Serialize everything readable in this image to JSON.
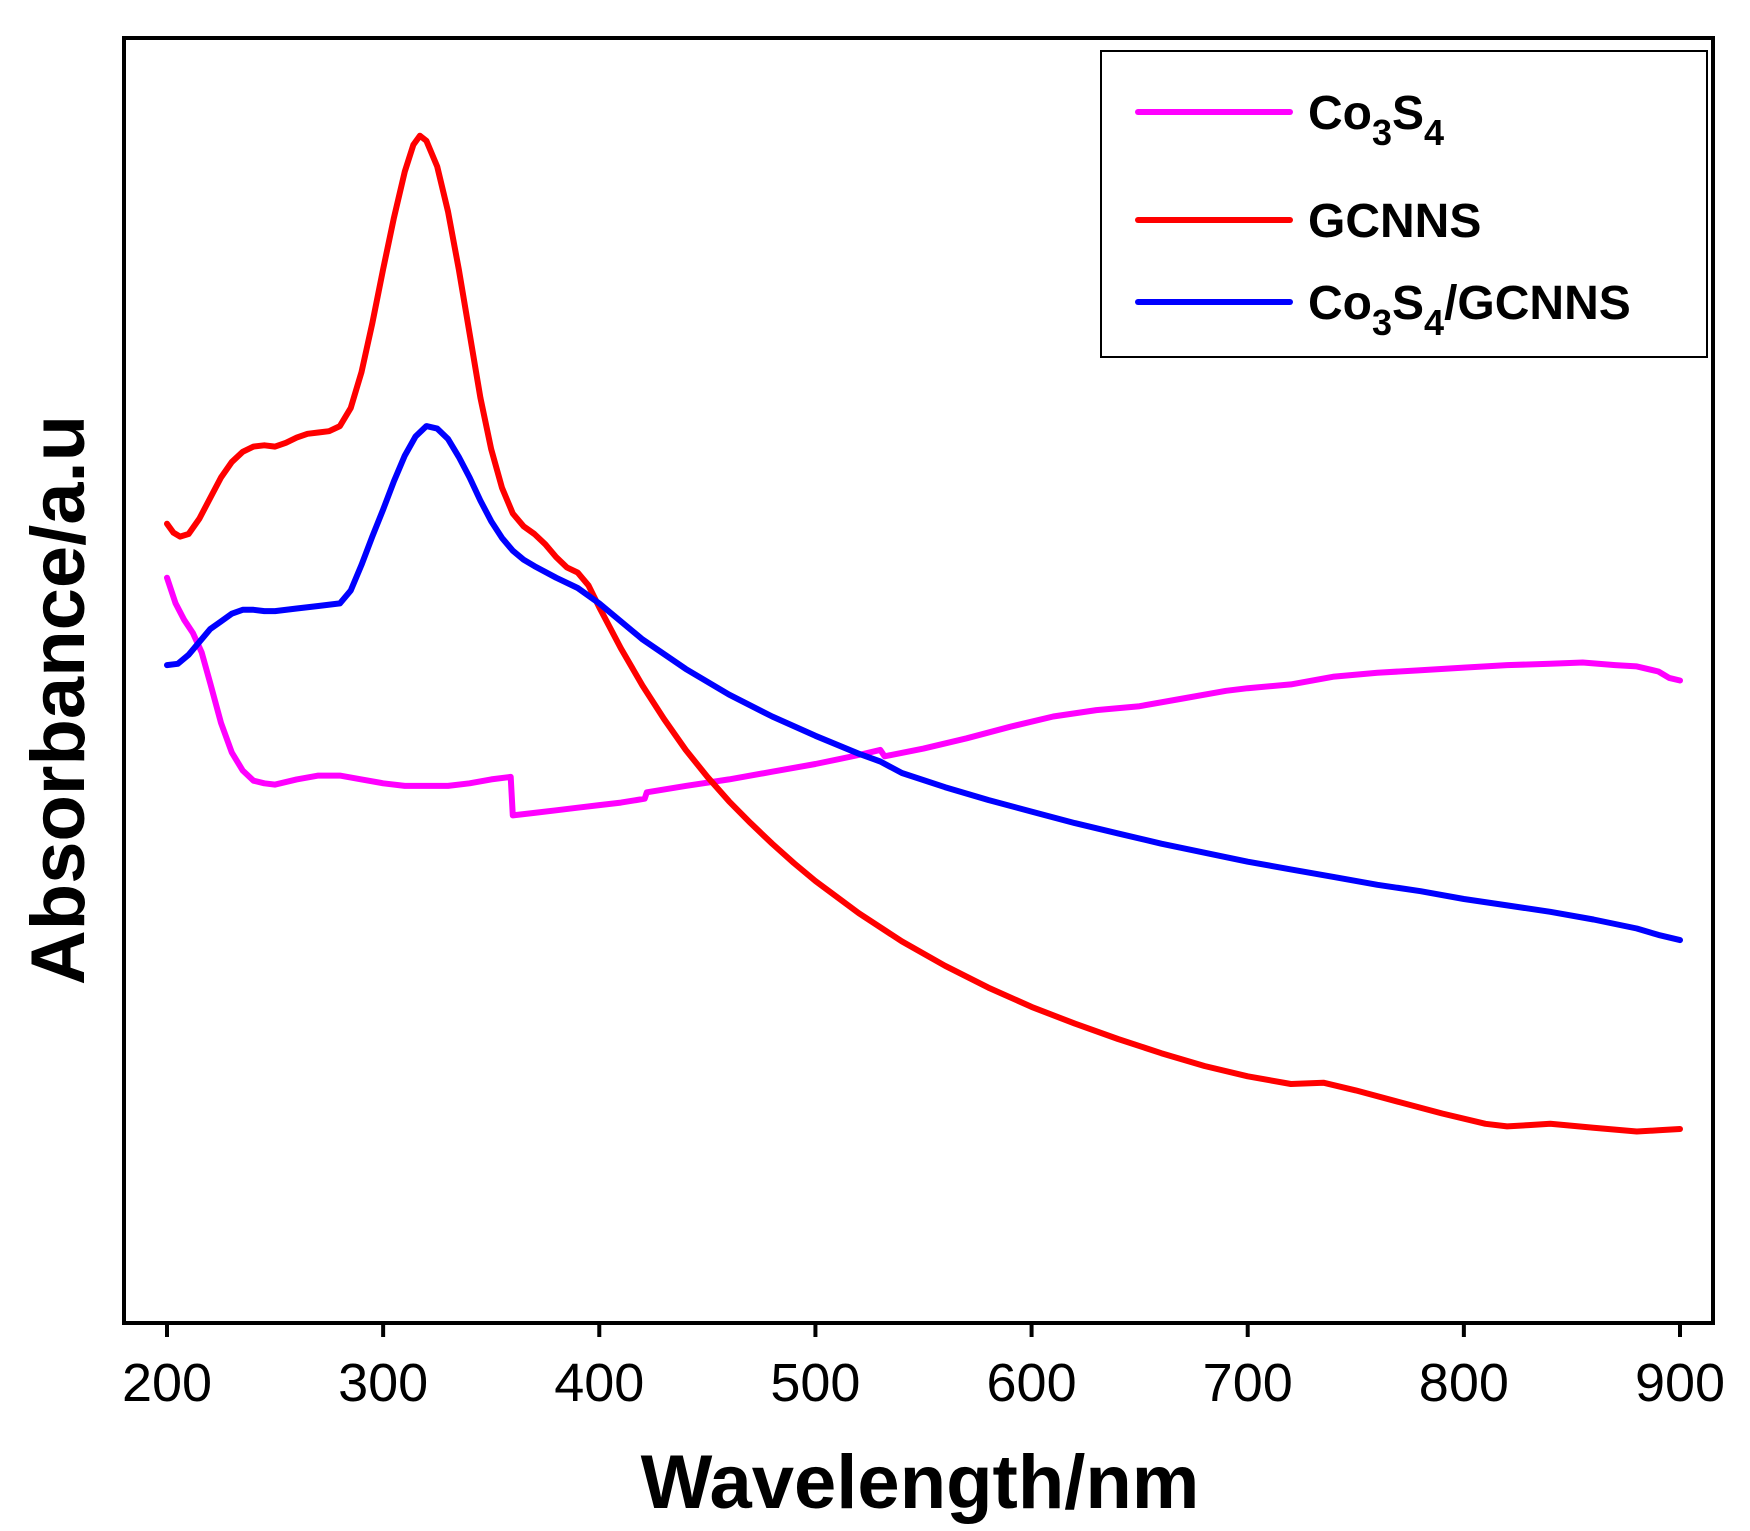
{
  "chart_data": {
    "type": "line",
    "title": "",
    "xlabel": "Wavelength/nm",
    "ylabel": "Absorbance/a.u",
    "xlim": [
      180,
      910
    ],
    "ylim": [
      0,
      1.0
    ],
    "x_ticks": [
      200,
      300,
      400,
      500,
      600,
      700,
      800,
      900
    ],
    "x_tick_labels": [
      "200",
      "300",
      "400",
      "500",
      "600",
      "700",
      "800",
      "900"
    ],
    "y_ticks_shown": false,
    "legend_position": "top-right",
    "series": [
      {
        "name": "Co3S4",
        "label_parts": [
          "Co",
          "3",
          "S",
          "4"
        ],
        "color": "#ff00ff",
        "points": [
          [
            200,
            0.58
          ],
          [
            204,
            0.56
          ],
          [
            208,
            0.547
          ],
          [
            212,
            0.537
          ],
          [
            216,
            0.522
          ],
          [
            220,
            0.498
          ],
          [
            225,
            0.467
          ],
          [
            230,
            0.444
          ],
          [
            235,
            0.43
          ],
          [
            240,
            0.422
          ],
          [
            245,
            0.42
          ],
          [
            250,
            0.419
          ],
          [
            260,
            0.423
          ],
          [
            270,
            0.426
          ],
          [
            280,
            0.426
          ],
          [
            290,
            0.423
          ],
          [
            300,
            0.42
          ],
          [
            310,
            0.418
          ],
          [
            320,
            0.418
          ],
          [
            330,
            0.418
          ],
          [
            340,
            0.42
          ],
          [
            350,
            0.423
          ],
          [
            359,
            0.425
          ],
          [
            360,
            0.395
          ],
          [
            370,
            0.397
          ],
          [
            380,
            0.399
          ],
          [
            390,
            0.401
          ],
          [
            400,
            0.403
          ],
          [
            410,
            0.405
          ],
          [
            421,
            0.408
          ],
          [
            422,
            0.413
          ],
          [
            440,
            0.418
          ],
          [
            460,
            0.423
          ],
          [
            480,
            0.429
          ],
          [
            500,
            0.435
          ],
          [
            520,
            0.442
          ],
          [
            530,
            0.446
          ],
          [
            532,
            0.441
          ],
          [
            550,
            0.447
          ],
          [
            570,
            0.455
          ],
          [
            590,
            0.464
          ],
          [
            610,
            0.472
          ],
          [
            630,
            0.477
          ],
          [
            650,
            0.48
          ],
          [
            670,
            0.486
          ],
          [
            690,
            0.492
          ],
          [
            700,
            0.494
          ],
          [
            720,
            0.497
          ],
          [
            740,
            0.503
          ],
          [
            760,
            0.506
          ],
          [
            780,
            0.508
          ],
          [
            800,
            0.51
          ],
          [
            820,
            0.512
          ],
          [
            840,
            0.513
          ],
          [
            855,
            0.514
          ],
          [
            870,
            0.512
          ],
          [
            880,
            0.511
          ],
          [
            890,
            0.507
          ],
          [
            895,
            0.502
          ],
          [
            900,
            0.5
          ]
        ]
      },
      {
        "name": "GCNNS",
        "label_parts": [
          "GCNNS"
        ],
        "color": "#ff0000",
        "points": [
          [
            200,
            0.622
          ],
          [
            203,
            0.615
          ],
          [
            206,
            0.612
          ],
          [
            210,
            0.614
          ],
          [
            215,
            0.626
          ],
          [
            220,
            0.642
          ],
          [
            225,
            0.658
          ],
          [
            230,
            0.67
          ],
          [
            235,
            0.678
          ],
          [
            240,
            0.682
          ],
          [
            245,
            0.683
          ],
          [
            250,
            0.682
          ],
          [
            255,
            0.685
          ],
          [
            260,
            0.689
          ],
          [
            265,
            0.692
          ],
          [
            270,
            0.693
          ],
          [
            275,
            0.694
          ],
          [
            280,
            0.698
          ],
          [
            285,
            0.712
          ],
          [
            290,
            0.74
          ],
          [
            295,
            0.778
          ],
          [
            300,
            0.82
          ],
          [
            305,
            0.86
          ],
          [
            310,
            0.896
          ],
          [
            314,
            0.917
          ],
          [
            317,
            0.924
          ],
          [
            320,
            0.92
          ],
          [
            325,
            0.9
          ],
          [
            330,
            0.865
          ],
          [
            335,
            0.82
          ],
          [
            340,
            0.77
          ],
          [
            345,
            0.72
          ],
          [
            350,
            0.68
          ],
          [
            355,
            0.65
          ],
          [
            360,
            0.63
          ],
          [
            365,
            0.62
          ],
          [
            370,
            0.614
          ],
          [
            375,
            0.606
          ],
          [
            380,
            0.596
          ],
          [
            385,
            0.588
          ],
          [
            390,
            0.584
          ],
          [
            395,
            0.574
          ],
          [
            400,
            0.557
          ],
          [
            410,
            0.525
          ],
          [
            420,
            0.496
          ],
          [
            430,
            0.47
          ],
          [
            440,
            0.446
          ],
          [
            450,
            0.425
          ],
          [
            460,
            0.406
          ],
          [
            470,
            0.389
          ],
          [
            480,
            0.373
          ],
          [
            490,
            0.358
          ],
          [
            500,
            0.344
          ],
          [
            520,
            0.319
          ],
          [
            540,
            0.297
          ],
          [
            560,
            0.278
          ],
          [
            580,
            0.261
          ],
          [
            600,
            0.246
          ],
          [
            620,
            0.233
          ],
          [
            640,
            0.221
          ],
          [
            660,
            0.21
          ],
          [
            680,
            0.2
          ],
          [
            700,
            0.192
          ],
          [
            720,
            0.186
          ],
          [
            735,
            0.187
          ],
          [
            750,
            0.181
          ],
          [
            770,
            0.172
          ],
          [
            790,
            0.163
          ],
          [
            810,
            0.155
          ],
          [
            820,
            0.153
          ],
          [
            830,
            0.154
          ],
          [
            840,
            0.155
          ],
          [
            860,
            0.152
          ],
          [
            880,
            0.149
          ],
          [
            890,
            0.15
          ],
          [
            900,
            0.151
          ]
        ]
      },
      {
        "name": "Co3S4/GCNNS",
        "label_parts": [
          "Co",
          "3",
          "S",
          "4",
          "/GCNNS"
        ],
        "color": "#0000ff",
        "points": [
          [
            200,
            0.512
          ],
          [
            205,
            0.513
          ],
          [
            210,
            0.52
          ],
          [
            215,
            0.53
          ],
          [
            220,
            0.54
          ],
          [
            225,
            0.546
          ],
          [
            230,
            0.552
          ],
          [
            235,
            0.555
          ],
          [
            240,
            0.555
          ],
          [
            245,
            0.554
          ],
          [
            250,
            0.554
          ],
          [
            260,
            0.556
          ],
          [
            270,
            0.558
          ],
          [
            280,
            0.56
          ],
          [
            285,
            0.57
          ],
          [
            290,
            0.59
          ],
          [
            295,
            0.612
          ],
          [
            300,
            0.633
          ],
          [
            305,
            0.655
          ],
          [
            310,
            0.675
          ],
          [
            315,
            0.69
          ],
          [
            320,
            0.698
          ],
          [
            325,
            0.696
          ],
          [
            330,
            0.688
          ],
          [
            335,
            0.674
          ],
          [
            340,
            0.658
          ],
          [
            345,
            0.64
          ],
          [
            350,
            0.624
          ],
          [
            355,
            0.611
          ],
          [
            360,
            0.601
          ],
          [
            365,
            0.594
          ],
          [
            370,
            0.589
          ],
          [
            380,
            0.58
          ],
          [
            390,
            0.572
          ],
          [
            400,
            0.56
          ],
          [
            420,
            0.532
          ],
          [
            440,
            0.509
          ],
          [
            460,
            0.489
          ],
          [
            480,
            0.472
          ],
          [
            500,
            0.457
          ],
          [
            520,
            0.443
          ],
          [
            530,
            0.437
          ],
          [
            540,
            0.428
          ],
          [
            560,
            0.417
          ],
          [
            580,
            0.407
          ],
          [
            600,
            0.398
          ],
          [
            620,
            0.389
          ],
          [
            640,
            0.381
          ],
          [
            660,
            0.373
          ],
          [
            680,
            0.366
          ],
          [
            700,
            0.359
          ],
          [
            720,
            0.353
          ],
          [
            740,
            0.347
          ],
          [
            760,
            0.341
          ],
          [
            780,
            0.336
          ],
          [
            800,
            0.33
          ],
          [
            820,
            0.325
          ],
          [
            840,
            0.32
          ],
          [
            860,
            0.314
          ],
          [
            880,
            0.307
          ],
          [
            890,
            0.302
          ],
          [
            900,
            0.298
          ]
        ]
      }
    ]
  }
}
